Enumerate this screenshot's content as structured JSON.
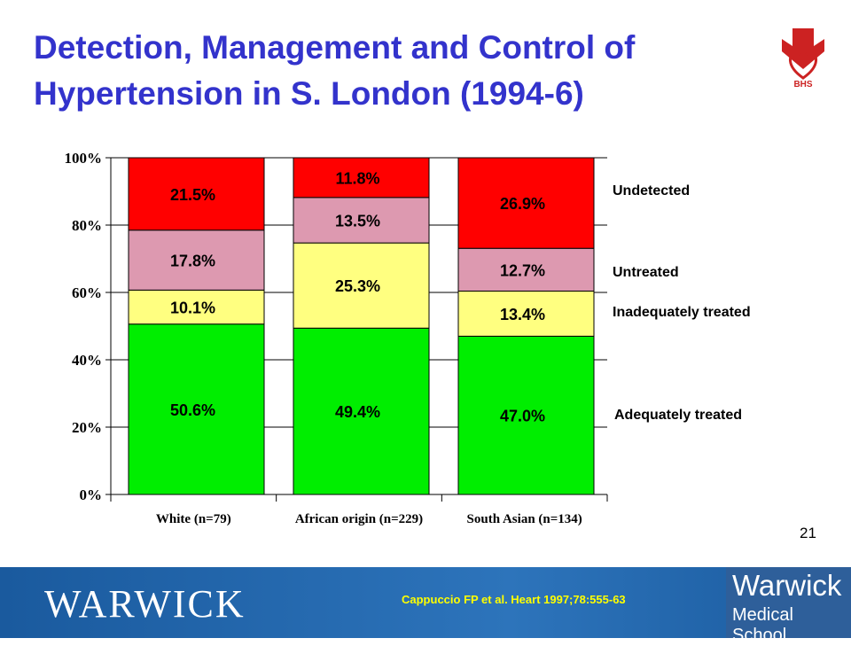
{
  "slide": {
    "title_line1": "Detection, Management and Control of",
    "title_line2": "Hypertension in S. London (1994-6)",
    "logo_text": "BHS",
    "slide_number": "21",
    "citation": "Cappuccio FP et al. Heart 1997;78:555-63",
    "footer_left_logo": "WARWICK",
    "footer_right_logo_line1": "Warwick",
    "footer_right_logo_line2": "Medical School",
    "colors": {
      "title": "#3333cc",
      "footer": "#1f64a8",
      "citation": "#ffff00",
      "logo_red": "#cc2222"
    }
  },
  "chart_data": {
    "type": "bar",
    "stacked": true,
    "categories": [
      "White (n=79)",
      "African origin (n=229)",
      "South Asian (n=134)"
    ],
    "ylim": [
      0,
      100
    ],
    "y_ticks": [
      "0%",
      "20%",
      "40%",
      "60%",
      "80%",
      "100%"
    ],
    "y_tick_values": [
      0,
      20,
      40,
      60,
      80,
      100
    ],
    "grid": true,
    "legend_placement": "right",
    "series": [
      {
        "name": "Adequately treated",
        "color": "#00ee00",
        "values": [
          50.6,
          49.4,
          47.0
        ],
        "labels": [
          "50.6%",
          "49.4%",
          "47.0%"
        ]
      },
      {
        "name": "Inadequately treated",
        "color": "#ffff80",
        "values": [
          10.1,
          25.3,
          13.4
        ],
        "labels": [
          "10.1%",
          "25.3%",
          "13.4%"
        ]
      },
      {
        "name": "Untreated",
        "color": "#dd99b0",
        "values": [
          17.8,
          13.5,
          12.7
        ],
        "labels": [
          "17.8%",
          "13.5%",
          "12.7%"
        ]
      },
      {
        "name": "Undetected",
        "color": "#ff0000",
        "values": [
          21.5,
          11.8,
          26.9
        ],
        "labels": [
          "21.5%",
          "11.8%",
          "26.9%"
        ]
      }
    ]
  }
}
